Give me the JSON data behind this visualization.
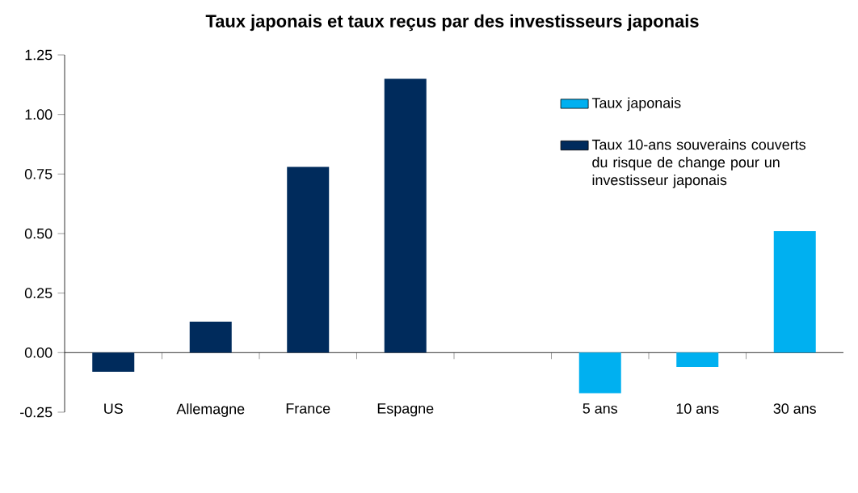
{
  "chart_data": {
    "type": "bar",
    "title": "Taux japonais et taux reçus par des investisseurs japonais",
    "categories": [
      "US",
      "Allemagne",
      "France",
      "Espagne",
      null,
      "5 ans",
      "10 ans",
      "30 ans"
    ],
    "series": [
      {
        "name": "Taux japonais",
        "color": "#00b0f0",
        "values": [
          null,
          null,
          null,
          null,
          null,
          -0.17,
          -0.06,
          0.51
        ]
      },
      {
        "name": "Taux 10-ans souverains couverts du risque de change pour un investisseur japonais",
        "color": "#002b5c",
        "values": [
          -0.08,
          0.13,
          0.78,
          1.15,
          null,
          null,
          null,
          null
        ]
      }
    ],
    "ylim": [
      -0.25,
      1.25
    ],
    "yticks": [
      {
        "value": -0.25,
        "label": "-0.25"
      },
      {
        "value": 0,
        "label": "0.00"
      },
      {
        "value": 0.25,
        "label": "0.25"
      },
      {
        "value": 0.5,
        "label": "0.50"
      },
      {
        "value": 0.75,
        "label": "0.75"
      },
      {
        "value": 1,
        "label": "1.00"
      },
      {
        "value": 1.25,
        "label": "1.25"
      }
    ],
    "legend": "top right"
  }
}
